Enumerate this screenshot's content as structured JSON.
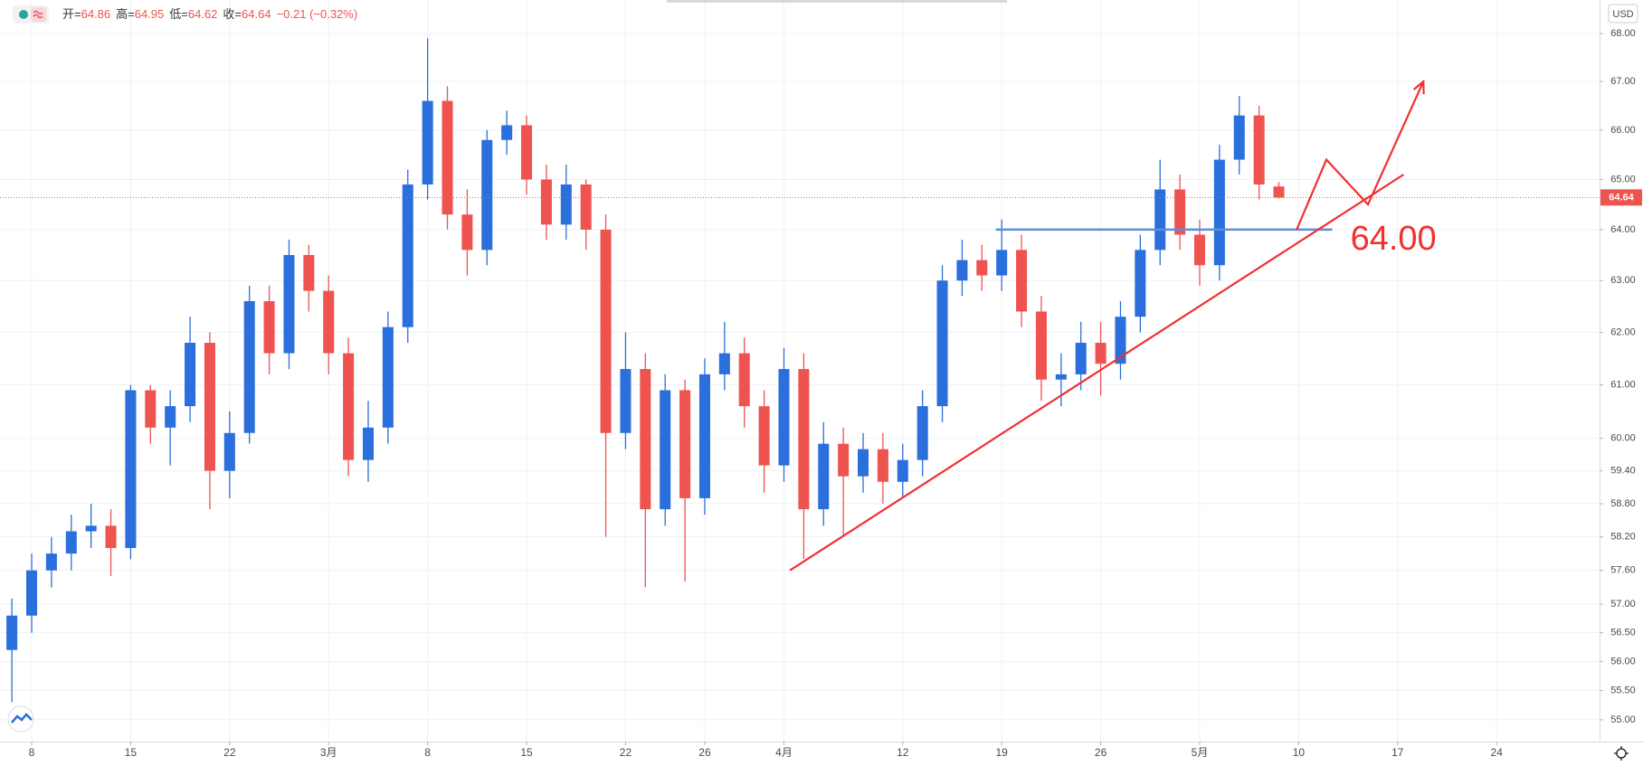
{
  "chart_data": {
    "type": "candlestick",
    "currency": "USD",
    "legend": [
      {
        "key": "开=",
        "value": 64.86
      },
      {
        "key": "高=",
        "value": 64.95
      },
      {
        "key": "低=",
        "value": 64.62
      },
      {
        "key": "收=",
        "value": 64.64
      }
    ],
    "change": "−0.21 (−0.32%)",
    "log_scale": true,
    "grid": true,
    "up_color": "#2a6fdb",
    "down_color": "#ef5350",
    "xlim": [
      -1.6,
      79.2
    ],
    "ylim": [
      54.63,
      68.71
    ],
    "xticks": [
      {
        "value": 0,
        "label": "8"
      },
      {
        "value": 5,
        "label": "15"
      },
      {
        "value": 10,
        "label": "22"
      },
      {
        "value": 15,
        "label": "3月"
      },
      {
        "value": 20,
        "label": "8"
      },
      {
        "value": 25,
        "label": "15"
      },
      {
        "value": 30,
        "label": "22"
      },
      {
        "value": 34,
        "label": "26"
      },
      {
        "value": 38,
        "label": "4月"
      },
      {
        "value": 44,
        "label": "12"
      },
      {
        "value": 49,
        "label": "19"
      },
      {
        "value": 54,
        "label": "26"
      },
      {
        "value": 59,
        "label": "5月"
      },
      {
        "value": 64,
        "label": "10"
      },
      {
        "value": 69,
        "label": "17"
      },
      {
        "value": 74,
        "label": "24"
      }
    ],
    "yticks": [
      {
        "value": 55,
        "label": "55.00"
      },
      {
        "value": 55.5,
        "label": "55.50"
      },
      {
        "value": 56,
        "label": "56.00"
      },
      {
        "value": 56.5,
        "label": "56.50"
      },
      {
        "value": 57,
        "label": "57.00"
      },
      {
        "value": 57.6,
        "label": "57.60"
      },
      {
        "value": 58.2,
        "label": "58.20"
      },
      {
        "value": 58.8,
        "label": "58.80"
      },
      {
        "value": 59.4,
        "label": "59.40"
      },
      {
        "value": 60,
        "label": "60.00"
      },
      {
        "value": 61,
        "label": "61.00"
      },
      {
        "value": 62,
        "label": "62.00"
      },
      {
        "value": 63,
        "label": "63.00"
      },
      {
        "value": 64,
        "label": "64.00"
      },
      {
        "value": 65,
        "label": "65.00"
      },
      {
        "value": 66,
        "label": "66.00"
      },
      {
        "value": 67,
        "label": "67.00"
      },
      {
        "value": 68,
        "label": "68.00"
      }
    ],
    "x": [
      -1,
      0,
      1,
      2,
      3,
      4,
      5,
      6,
      7,
      8,
      9,
      10,
      11,
      12,
      13,
      14,
      15,
      16,
      17,
      18,
      19,
      20,
      21,
      22,
      23,
      24,
      25,
      26,
      27,
      28,
      29,
      30,
      31,
      32,
      33,
      34,
      35,
      36,
      37,
      38,
      39,
      40,
      41,
      42,
      43,
      44,
      45,
      46,
      47,
      48,
      49,
      50,
      51,
      52,
      53,
      54,
      55,
      56,
      57,
      58,
      59,
      60,
      61,
      62,
      63
    ],
    "open": [
      56.2,
      56.8,
      57.6,
      57.9,
      58.3,
      58.4,
      58.0,
      60.9,
      60.2,
      60.6,
      61.8,
      59.4,
      60.1,
      62.6,
      61.6,
      63.5,
      62.8,
      61.6,
      59.6,
      60.2,
      62.1,
      64.9,
      66.6,
      64.3,
      63.6,
      65.8,
      66.1,
      65.0,
      64.1,
      64.9,
      64.0,
      60.1,
      61.3,
      58.7,
      60.9,
      58.9,
      61.2,
      61.6,
      60.6,
      59.5,
      61.3,
      58.7,
      59.9,
      59.3,
      59.8,
      59.2,
      59.6,
      60.6,
      63.0,
      63.4,
      63.1,
      63.6,
      62.4,
      61.1,
      61.2,
      61.8,
      61.4,
      62.3,
      63.6,
      64.8,
      63.9,
      63.3,
      65.4,
      66.3,
      64.86
    ],
    "high": [
      57.1,
      57.9,
      58.2,
      58.6,
      58.8,
      58.7,
      61.0,
      61.0,
      60.9,
      62.3,
      62.0,
      60.5,
      62.9,
      62.9,
      63.8,
      63.7,
      63.1,
      61.9,
      60.7,
      62.4,
      65.2,
      67.9,
      66.9,
      64.8,
      66.0,
      66.4,
      66.3,
      65.3,
      65.3,
      65.0,
      64.3,
      62.0,
      61.6,
      61.2,
      61.1,
      61.5,
      62.2,
      61.9,
      60.9,
      61.7,
      61.6,
      60.3,
      60.2,
      60.1,
      60.1,
      59.9,
      60.9,
      63.3,
      63.8,
      63.7,
      64.2,
      63.9,
      62.7,
      61.6,
      62.2,
      62.2,
      62.6,
      63.9,
      65.4,
      65.1,
      64.2,
      65.7,
      66.7,
      66.5,
      64.95
    ],
    "low": [
      55.3,
      56.5,
      57.3,
      57.6,
      58.0,
      57.5,
      57.8,
      59.9,
      59.5,
      60.3,
      58.7,
      58.9,
      59.9,
      61.2,
      61.3,
      62.4,
      61.2,
      59.3,
      59.2,
      59.9,
      61.8,
      64.6,
      64.0,
      63.1,
      63.3,
      65.5,
      64.7,
      63.8,
      63.8,
      63.6,
      58.2,
      59.8,
      57.3,
      58.4,
      57.4,
      58.6,
      60.9,
      60.2,
      59.0,
      59.2,
      57.8,
      58.4,
      58.2,
      59.0,
      58.8,
      58.9,
      59.3,
      60.3,
      62.7,
      62.8,
      62.8,
      62.1,
      60.7,
      60.6,
      60.9,
      60.8,
      61.1,
      62.0,
      63.3,
      63.6,
      62.9,
      63.0,
      65.1,
      64.6,
      64.62
    ],
    "close": [
      56.8,
      57.6,
      57.9,
      58.3,
      58.4,
      58.0,
      60.9,
      60.2,
      60.6,
      61.8,
      59.4,
      60.1,
      62.6,
      61.6,
      63.5,
      62.8,
      61.6,
      59.6,
      60.2,
      62.1,
      64.9,
      66.6,
      64.3,
      63.6,
      65.8,
      66.1,
      65.0,
      64.1,
      64.9,
      64.0,
      60.1,
      61.3,
      58.7,
      60.9,
      58.9,
      61.2,
      61.6,
      60.6,
      59.5,
      61.3,
      58.7,
      59.9,
      59.3,
      59.8,
      59.2,
      59.6,
      60.6,
      63.0,
      63.4,
      63.1,
      63.6,
      62.4,
      61.1,
      61.2,
      61.8,
      61.4,
      62.3,
      63.6,
      64.8,
      63.9,
      63.3,
      65.4,
      66.3,
      64.9,
      64.64
    ],
    "last_price": {
      "value": 64.64,
      "label": "64.64",
      "color": "#ef5350"
    },
    "annotations": {
      "trendline": {
        "x": [
          38.3,
          69.3
        ],
        "y": [
          57.6,
          65.1
        ],
        "color": "#f23030"
      },
      "support": {
        "x": [
          48.7,
          65.7
        ],
        "y": [
          64.0,
          64.0
        ],
        "color": "#5b8fd6",
        "label": "64.00"
      },
      "projection": {
        "x": [
          63.9,
          65.4,
          67.5,
          70.3
        ],
        "y": [
          64.0,
          65.4,
          64.5,
          67.0
        ],
        "color": "#f23030"
      }
    }
  }
}
